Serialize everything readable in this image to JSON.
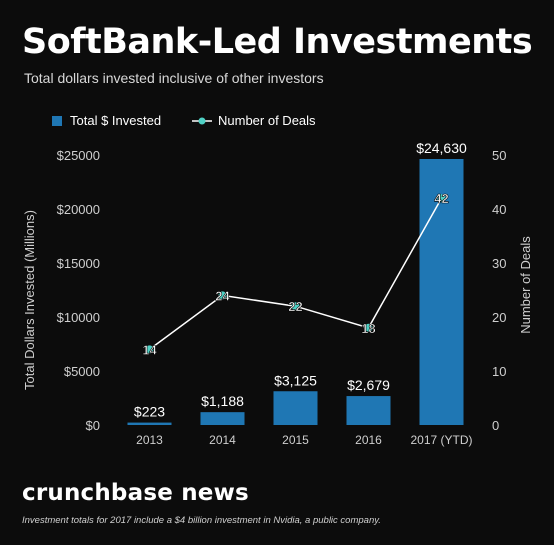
{
  "header": {
    "title": "SoftBank-Led Investments",
    "subtitle": "Total dollars invested inclusive of other investors"
  },
  "footer": {
    "brand": "crunchbase news",
    "footnote": "Investment totals for 2017 include a $4 billion investment in Nvidia, a public company."
  },
  "colors": {
    "background": "#0c0c0c",
    "bar": "#1f77b4",
    "line_marker": "#4fd1c5",
    "line": "#ffffff",
    "text": "#ffffff"
  },
  "chart_data": {
    "type": "bar",
    "categories": [
      "2013",
      "2014",
      "2015",
      "2016",
      "2017 (YTD)"
    ],
    "series": [
      {
        "name": "Total $ Invested",
        "type": "bar",
        "axis": "left",
        "values": [
          223,
          1188,
          3125,
          2679,
          24630
        ],
        "labels": [
          "$223",
          "$1,188",
          "$3,125",
          "$2,679",
          "$24,630"
        ]
      },
      {
        "name": "Number of Deals",
        "type": "line",
        "axis": "right",
        "values": [
          14,
          24,
          22,
          18,
          42
        ],
        "labels": [
          "14",
          "24",
          "22",
          "18",
          "42"
        ]
      }
    ],
    "ylabel": "Total Dollars Invested (Millions)",
    "ylabel_right": "Number of Deals",
    "ylim": [
      0,
      25000
    ],
    "ylim_right": [
      0,
      50
    ],
    "yticks": [
      0,
      5000,
      10000,
      15000,
      20000,
      25000
    ],
    "ytick_labels": [
      "$0",
      "$5000",
      "$10000",
      "$15000",
      "$20000",
      "$25000"
    ],
    "yticks_right": [
      0,
      10,
      20,
      30,
      40,
      50
    ],
    "ytick_labels_right": [
      "0",
      "10",
      "20",
      "30",
      "40",
      "50"
    ],
    "legend_position": "top-left",
    "grid": false
  }
}
